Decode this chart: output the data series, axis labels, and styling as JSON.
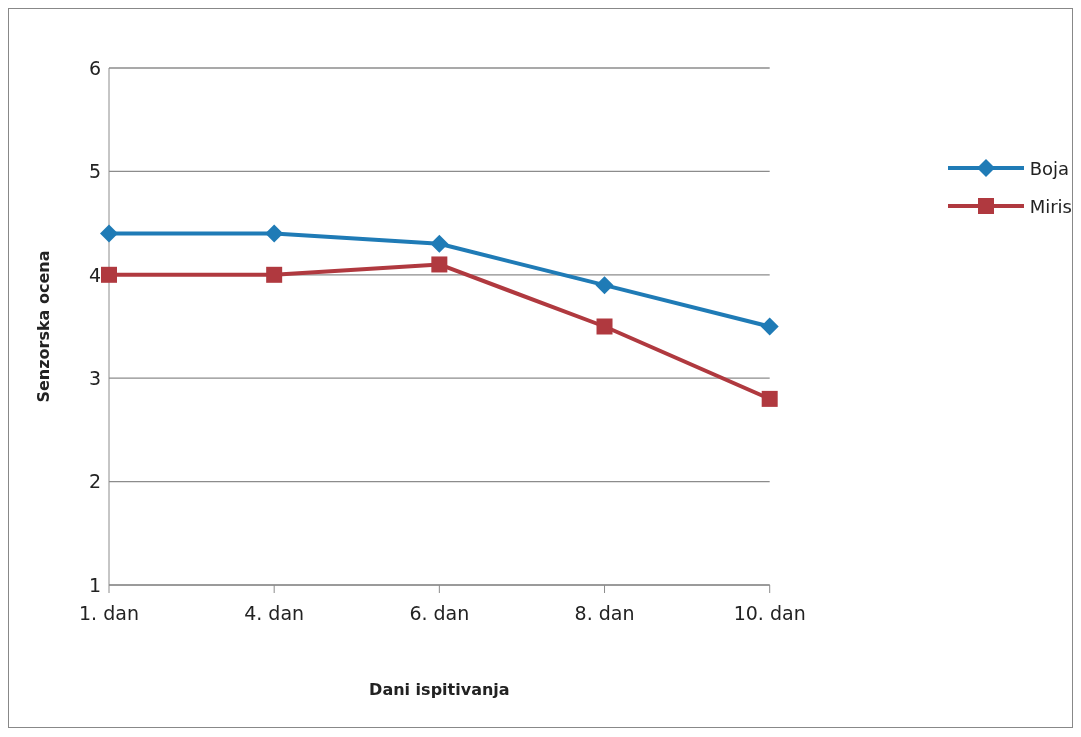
{
  "chart_data": {
    "type": "line",
    "xlabel": "Dani ispitivanja",
    "ylabel": "Senzorska ocena",
    "categories": [
      "1. dan",
      "4. dan",
      "6. dan",
      "8. dan",
      "10. dan"
    ],
    "series": [
      {
        "name": "Boja",
        "color": "#1f7bb6",
        "marker": "diamond",
        "values": [
          4.4,
          4.4,
          4.3,
          3.9,
          3.5
        ]
      },
      {
        "name": "Miris",
        "color": "#b0393f",
        "marker": "square",
        "values": [
          4.0,
          4.0,
          4.1,
          3.5,
          2.8
        ]
      }
    ],
    "ylim": [
      1,
      6
    ],
    "yticks": [
      1,
      2,
      3,
      4,
      5,
      6
    ],
    "grid": "y",
    "legend": "right",
    "line_style": "solid"
  }
}
